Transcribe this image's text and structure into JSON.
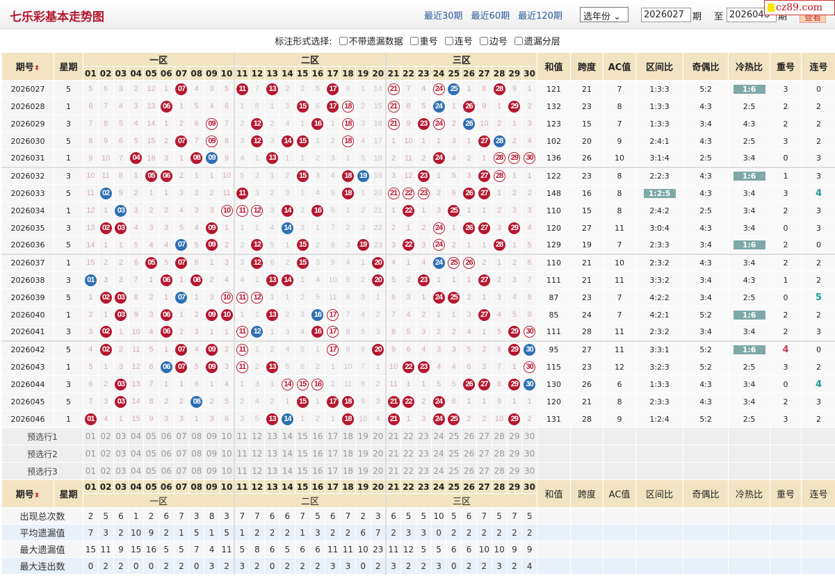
{
  "header": {
    "title": "七乐彩基本走势图",
    "nav": [
      "最近30期",
      "最近60期",
      "最近120期"
    ],
    "year_select": "选年份",
    "from": "2026027",
    "period_label": "期",
    "to_label": "至",
    "to": "2026046",
    "period_label2": "期",
    "query": "查看",
    "logo": "cz89.com"
  },
  "options": {
    "label": "标注形式选择:",
    "items": [
      "不带遗漏数据",
      "重号",
      "连号",
      "边号",
      "遗漏分层"
    ]
  },
  "columns": {
    "issue": "期号",
    "sort_icon": "sort-arrows-icon",
    "weekday": "星期",
    "zones": [
      "一区",
      "二区",
      "三区"
    ],
    "numbers": [
      "01",
      "02",
      "03",
      "04",
      "05",
      "06",
      "07",
      "08",
      "09",
      "10",
      "11",
      "12",
      "13",
      "14",
      "15",
      "16",
      "17",
      "18",
      "19",
      "20",
      "21",
      "22",
      "23",
      "24",
      "25",
      "26",
      "27",
      "28",
      "29",
      "30"
    ],
    "stats": [
      "和值",
      "跨度",
      "AC值",
      "区间比",
      "奇偶比",
      "冷热比",
      "重号",
      "连号"
    ]
  },
  "legend_colors": {
    "main_ball": "#b5172f",
    "special_ball": "#2d6fb3",
    "repeat_outline": "#b5172f",
    "highlight": "#7fa8a8"
  },
  "rows": [
    {
      "issue": "2026027",
      "wd": "5",
      "cells": [
        "5",
        "6",
        "3",
        "2",
        "12",
        "1",
        "r07",
        "4",
        "3",
        "5",
        "r11",
        "7",
        "r13",
        "2",
        "2",
        "5",
        "r17",
        "6",
        "1",
        "14",
        "o21",
        "7",
        "4",
        "o24",
        "b25",
        "1",
        "8",
        "r28",
        "9",
        "1"
      ],
      "stats": [
        "121",
        "21",
        "7",
        "1:3:3",
        "5:2",
        "1:6",
        "3",
        "0"
      ],
      "hot_hl": true
    },
    {
      "issue": "2026028",
      "wd": "1",
      "cells": [
        "6",
        "7",
        "4",
        "3",
        "13",
        "r06",
        "1",
        "5",
        "4",
        "6",
        "1",
        "8",
        "1",
        "3",
        "r15",
        "6",
        "r17",
        "o18",
        "2",
        "15",
        "o21",
        "8",
        "5",
        "b24",
        "1",
        "r26",
        "9",
        "1",
        "r29",
        "2"
      ],
      "stats": [
        "132",
        "23",
        "8",
        "1:3:3",
        "4:3",
        "2:5",
        "2",
        "2"
      ]
    },
    {
      "issue": "2026029",
      "wd": "3",
      "cells": [
        "7",
        "8",
        "5",
        "4",
        "14",
        "1",
        "2",
        "6",
        "o09",
        "7",
        "2",
        "r12",
        "2",
        "4",
        "1",
        "r16",
        "1",
        "o18",
        "3",
        "16",
        "o21",
        "9",
        "r23",
        "o24",
        "2",
        "b26",
        "10",
        "2",
        "1",
        "3"
      ],
      "stats": [
        "123",
        "15",
        "7",
        "1:3:3",
        "3:4",
        "4:3",
        "2",
        "2"
      ]
    },
    {
      "issue": "2026030",
      "wd": "5",
      "cells": [
        "8",
        "9",
        "6",
        "5",
        "15",
        "2",
        "r07",
        "7",
        "o09",
        "8",
        "3",
        "r12",
        "3",
        "r14",
        "r15",
        "1",
        "2",
        "o18",
        "4",
        "17",
        "1",
        "10",
        "1",
        "1",
        "3",
        "1",
        "r27",
        "b28",
        "2",
        "4"
      ],
      "stats": [
        "102",
        "20",
        "9",
        "2:4:1",
        "4:3",
        "2:5",
        "3",
        "2"
      ]
    },
    {
      "issue": "2026031",
      "wd": "1",
      "cells": [
        "9",
        "10",
        "7",
        "r04",
        "16",
        "3",
        "1",
        "r08",
        "b09",
        "9",
        "4",
        "1",
        "r13",
        "1",
        "1",
        "2",
        "3",
        "1",
        "5",
        "18",
        "2",
        "11",
        "2",
        "r24",
        "4",
        "2",
        "1",
        "o28",
        "o29",
        "o30"
      ],
      "stats": [
        "136",
        "26",
        "10",
        "3:1:4",
        "2:5",
        "3:4",
        "0",
        "3"
      ]
    },
    {
      "issue": "2026032",
      "wd": "3",
      "cells": [
        "10",
        "11",
        "8",
        "1",
        "r05",
        "r06",
        "2",
        "1",
        "1",
        "10",
        "5",
        "2",
        "1",
        "2",
        "r15",
        "3",
        "4",
        "r18",
        "b19",
        "19",
        "3",
        "12",
        "r23",
        "1",
        "5",
        "3",
        "r27",
        "o28",
        "1",
        "1"
      ],
      "stats": [
        "122",
        "23",
        "8",
        "2:2:3",
        "4:3",
        "1:6",
        "1",
        "3"
      ],
      "hot_hl": true
    },
    {
      "issue": "2026033",
      "wd": "5",
      "cells": [
        "11",
        "b02",
        "9",
        "2",
        "1",
        "1",
        "3",
        "2",
        "2",
        "11",
        "r11",
        "3",
        "2",
        "3",
        "1",
        "4",
        "5",
        "r18",
        "1",
        "20",
        "o21",
        "o22",
        "o23",
        "2",
        "6",
        "r26",
        "r27",
        "1",
        "2",
        "2"
      ],
      "stats": [
        "148",
        "16",
        "8",
        "1:2:5",
        "4:3",
        "3:4",
        "3",
        "4"
      ],
      "zone_hl": true,
      "cons_teal": true
    },
    {
      "issue": "2026034",
      "wd": "1",
      "cells": [
        "12",
        "1",
        "b03",
        "3",
        "2",
        "2",
        "4",
        "3",
        "3",
        "o10",
        "o11",
        "o12",
        "3",
        "r14",
        "2",
        "r16",
        "6",
        "1",
        "2",
        "21",
        "1",
        "r22",
        "1",
        "3",
        "r25",
        "1",
        "1",
        "2",
        "3",
        "3"
      ],
      "stats": [
        "110",
        "15",
        "8",
        "2:4:2",
        "2:5",
        "3:4",
        "2",
        "3"
      ]
    },
    {
      "issue": "2026035",
      "wd": "3",
      "cells": [
        "13",
        "r02",
        "r03",
        "4",
        "3",
        "3",
        "5",
        "4",
        "r09",
        "1",
        "1",
        "1",
        "4",
        "b14",
        "3",
        "1",
        "7",
        "2",
        "3",
        "22",
        "2",
        "1",
        "2",
        "o24",
        "1",
        "r26",
        "r27",
        "3",
        "r29",
        "4"
      ],
      "stats": [
        "120",
        "27",
        "11",
        "3:0:4",
        "4:3",
        "3:4",
        "0",
        "3"
      ]
    },
    {
      "issue": "2026036",
      "wd": "5",
      "cells": [
        "14",
        "1",
        "1",
        "5",
        "4",
        "4",
        "b07",
        "5",
        "r09",
        "2",
        "2",
        "r12",
        "5",
        "1",
        "r15",
        "2",
        "8",
        "3",
        "r19",
        "23",
        "3",
        "r22",
        "3",
        "o24",
        "2",
        "1",
        "1",
        "r28",
        "1",
        "5"
      ],
      "stats": [
        "129",
        "19",
        "7",
        "2:3:3",
        "3:4",
        "1:6",
        "2",
        "0"
      ],
      "hot_hl": true
    },
    {
      "issue": "2026037",
      "wd": "1",
      "cells": [
        "15",
        "2",
        "2",
        "6",
        "r05",
        "5",
        "r07",
        "6",
        "1",
        "3",
        "3",
        "r12",
        "6",
        "2",
        "r15",
        "3",
        "9",
        "4",
        "1",
        "r20",
        "4",
        "1",
        "4",
        "b24",
        "o25",
        "o26",
        "2",
        "1",
        "2",
        "6"
      ],
      "stats": [
        "110",
        "21",
        "10",
        "2:3:2",
        "4:3",
        "3:4",
        "2",
        "2"
      ]
    },
    {
      "issue": "2026038",
      "wd": "3",
      "cells": [
        "b01",
        "3",
        "3",
        "7",
        "1",
        "r06",
        "1",
        "r08",
        "2",
        "4",
        "4",
        "1",
        "r13",
        "r14",
        "1",
        "4",
        "10",
        "5",
        "2",
        "r20",
        "5",
        "2",
        "r23",
        "1",
        "1",
        "1",
        "r27",
        "2",
        "3",
        "7"
      ],
      "stats": [
        "111",
        "21",
        "11",
        "3:3:2",
        "3:4",
        "4:3",
        "1",
        "2"
      ]
    },
    {
      "issue": "2026039",
      "wd": "5",
      "cells": [
        "1",
        "r02",
        "r03",
        "8",
        "2",
        "1",
        "b07",
        "1",
        "3",
        "o10",
        "o11",
        "o12",
        "1",
        "1",
        "2",
        "5",
        "11",
        "6",
        "3",
        "1",
        "6",
        "3",
        "1",
        "r24",
        "r25",
        "2",
        "1",
        "3",
        "4",
        "8"
      ],
      "stats": [
        "87",
        "23",
        "7",
        "4:2:2",
        "3:4",
        "2:5",
        "0",
        "5"
      ],
      "cons_teal": true
    },
    {
      "issue": "2026040",
      "wd": "1",
      "cells": [
        "2",
        "1",
        "r03",
        "9",
        "3",
        "r06",
        "1",
        "2",
        "r09",
        "r10",
        "1",
        "1",
        "r13",
        "2",
        "3",
        "b16",
        "o17",
        "7",
        "4",
        "2",
        "7",
        "4",
        "2",
        "1",
        "1",
        "3",
        "r27",
        "4",
        "5",
        "9"
      ],
      "stats": [
        "85",
        "24",
        "7",
        "4:2:1",
        "5:2",
        "1:6",
        "2",
        "2"
      ],
      "hot_hl": true
    },
    {
      "issue": "2026041",
      "wd": "3",
      "cells": [
        "3",
        "r02",
        "1",
        "10",
        "4",
        "r06",
        "2",
        "3",
        "1",
        "1",
        "o11",
        "b12",
        "1",
        "3",
        "4",
        "r16",
        "o17",
        "8",
        "5",
        "3",
        "8",
        "5",
        "3",
        "2",
        "2",
        "4",
        "1",
        "5",
        "r29",
        "o30"
      ],
      "stats": [
        "111",
        "28",
        "11",
        "2:3:2",
        "3:4",
        "3:4",
        "2",
        "3"
      ]
    },
    {
      "issue": "2026042",
      "wd": "5",
      "cells": [
        "4",
        "r02",
        "2",
        "11",
        "5",
        "1",
        "r07",
        "4",
        "r09",
        "2",
        "o11",
        "1",
        "2",
        "4",
        "5",
        "1",
        "o17",
        "9",
        "6",
        "r20",
        "9",
        "6",
        "4",
        "3",
        "3",
        "5",
        "2",
        "6",
        "r29",
        "b30"
      ],
      "stats": [
        "95",
        "27",
        "11",
        "3:3:1",
        "5:2",
        "1:6",
        "4",
        "0"
      ],
      "hot_hl": true,
      "rep_red": true
    },
    {
      "issue": "2026043",
      "wd": "1",
      "cells": [
        "5",
        "1",
        "3",
        "12",
        "6",
        "b06",
        "r07",
        "5",
        "r09",
        "3",
        "o11",
        "2",
        "r13",
        "5",
        "6",
        "2",
        "1",
        "10",
        "7",
        "1",
        "10",
        "r22",
        "r23",
        "4",
        "4",
        "6",
        "3",
        "7",
        "1",
        "o30"
      ],
      "stats": [
        "115",
        "23",
        "12",
        "3:2:3",
        "5:2",
        "2:5",
        "3",
        "2"
      ]
    },
    {
      "issue": "2026044",
      "wd": "3",
      "cells": [
        "6",
        "2",
        "r03",
        "13",
        "7",
        "1",
        "1",
        "6",
        "1",
        "4",
        "1",
        "3",
        "1",
        "o14",
        "o15",
        "o16",
        "2",
        "11",
        "8",
        "2",
        "11",
        "1",
        "1",
        "5",
        "5",
        "r26",
        "r27",
        "8",
        "r29",
        "b30"
      ],
      "stats": [
        "130",
        "26",
        "6",
        "1:3:3",
        "4:3",
        "3:4",
        "0",
        "4"
      ],
      "cons_teal": true
    },
    {
      "issue": "2026045",
      "wd": "5",
      "cells": [
        "7",
        "3",
        "r03",
        "14",
        "8",
        "2",
        "2",
        "b08",
        "2",
        "5",
        "2",
        "4",
        "2",
        "1",
        "r15",
        "1",
        "r17",
        "r18",
        "9",
        "3",
        "r21",
        "r22",
        "2",
        "r24",
        "6",
        "1",
        "1",
        "9",
        "1",
        "1"
      ],
      "stats": [
        "120",
        "21",
        "8",
        "2:3:3",
        "4:3",
        "3:4",
        "2",
        "3"
      ]
    },
    {
      "issue": "2026046",
      "wd": "1",
      "cells": [
        "r01",
        "4",
        "1",
        "15",
        "9",
        "3",
        "3",
        "1",
        "3",
        "6",
        "3",
        "5",
        "r13",
        "b14",
        "1",
        "2",
        "1",
        "r18",
        "10",
        "4",
        "r21",
        "1",
        "3",
        "r24",
        "r25",
        "2",
        "2",
        "10",
        "r29",
        "2"
      ],
      "stats": [
        "131",
        "28",
        "9",
        "1:2:4",
        "5:2",
        "2:5",
        "3",
        "2"
      ]
    }
  ],
  "preselect": [
    "预选行1",
    "预选行2",
    "预选行3"
  ],
  "footer": [
    {
      "label": "出现总次数",
      "values": [
        "2",
        "5",
        "6",
        "1",
        "2",
        "6",
        "7",
        "3",
        "8",
        "3",
        "7",
        "7",
        "6",
        "6",
        "7",
        "5",
        "6",
        "7",
        "2",
        "3",
        "6",
        "5",
        "5",
        "10",
        "5",
        "6",
        "7",
        "5",
        "7",
        "5"
      ]
    },
    {
      "label": "平均遗漏值",
      "values": [
        "7",
        "3",
        "2",
        "10",
        "9",
        "2",
        "1",
        "5",
        "1",
        "5",
        "1",
        "2",
        "2",
        "2",
        "1",
        "3",
        "2",
        "2",
        "6",
        "7",
        "2",
        "3",
        "3",
        "0",
        "2",
        "2",
        "2",
        "2",
        "2",
        "2"
      ]
    },
    {
      "label": "最大遗漏值",
      "values": [
        "15",
        "11",
        "9",
        "15",
        "16",
        "5",
        "5",
        "7",
        "4",
        "11",
        "5",
        "8",
        "6",
        "5",
        "6",
        "6",
        "11",
        "11",
        "10",
        "23",
        "11",
        "12",
        "5",
        "5",
        "6",
        "6",
        "10",
        "10",
        "9",
        "9"
      ]
    },
    {
      "label": "最大连出数",
      "values": [
        "0",
        "2",
        "2",
        "0",
        "0",
        "2",
        "2",
        "0",
        "3",
        "2",
        "3",
        "2",
        "0",
        "2",
        "2",
        "2",
        "3",
        "3",
        "0",
        "2",
        "3",
        "2",
        "2",
        "3",
        "0",
        "2",
        "2",
        "3",
        "2",
        "4"
      ]
    }
  ]
}
